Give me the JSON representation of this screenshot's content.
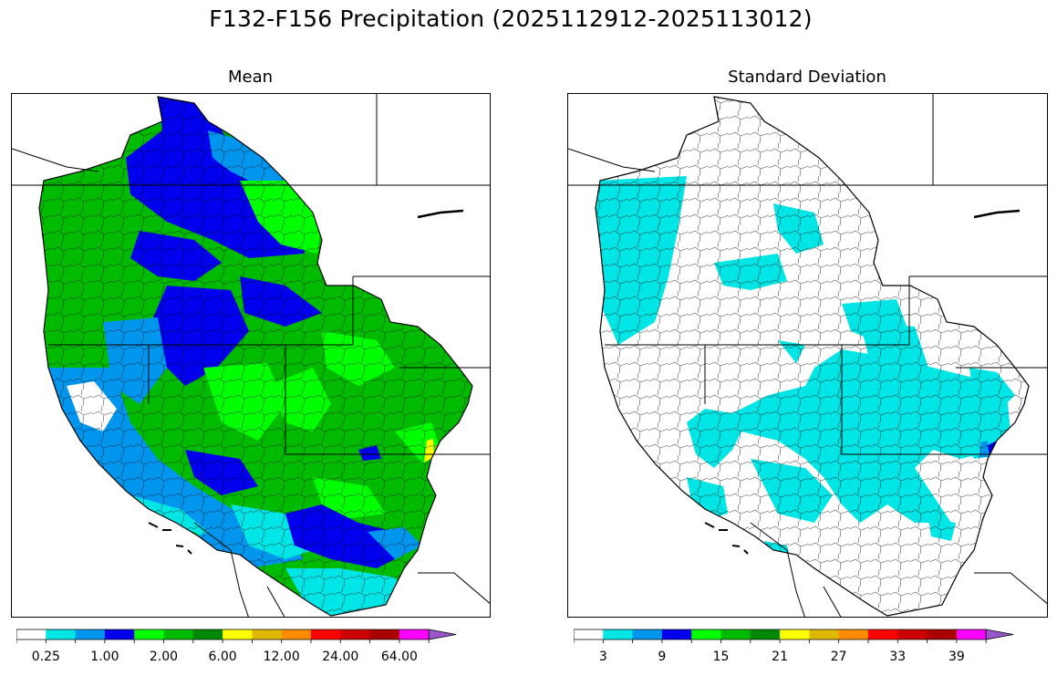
{
  "figure": {
    "title": "F132-F156 Precipitation (2025112912-2025113012)"
  },
  "panels": [
    {
      "id": "mean",
      "title": "Mean",
      "colorbar": {
        "colors": [
          "#ffffff",
          "#00e5e5",
          "#0096ee",
          "#0000ee",
          "#00ff00",
          "#00bb00",
          "#008800",
          "#ffff00",
          "#e0b800",
          "#ff8c00",
          "#ff0000",
          "#cc0000",
          "#aa0000",
          "#ff00ff",
          "#9955cc"
        ],
        "extend": "max",
        "tick_labels": [
          "0.25",
          "1.00",
          "2.00",
          "6.00",
          "12.00",
          "24.00",
          "64.00"
        ],
        "tick_boundaries": [
          1,
          3,
          5,
          7,
          9,
          11,
          13
        ]
      }
    },
    {
      "id": "std",
      "title": "Standard Deviation",
      "colorbar": {
        "colors": [
          "#ffffff",
          "#00e5e5",
          "#0096ee",
          "#0000ee",
          "#00ff00",
          "#00bb00",
          "#008800",
          "#ffff00",
          "#e0b800",
          "#ff8c00",
          "#ff0000",
          "#cc0000",
          "#aa0000",
          "#ff00ff",
          "#9955cc"
        ],
        "extend": "max",
        "tick_labels": [
          "3",
          "9",
          "15",
          "21",
          "27",
          "33",
          "39"
        ],
        "tick_boundaries": [
          1,
          3,
          5,
          7,
          9,
          11,
          13
        ]
      }
    }
  ]
}
